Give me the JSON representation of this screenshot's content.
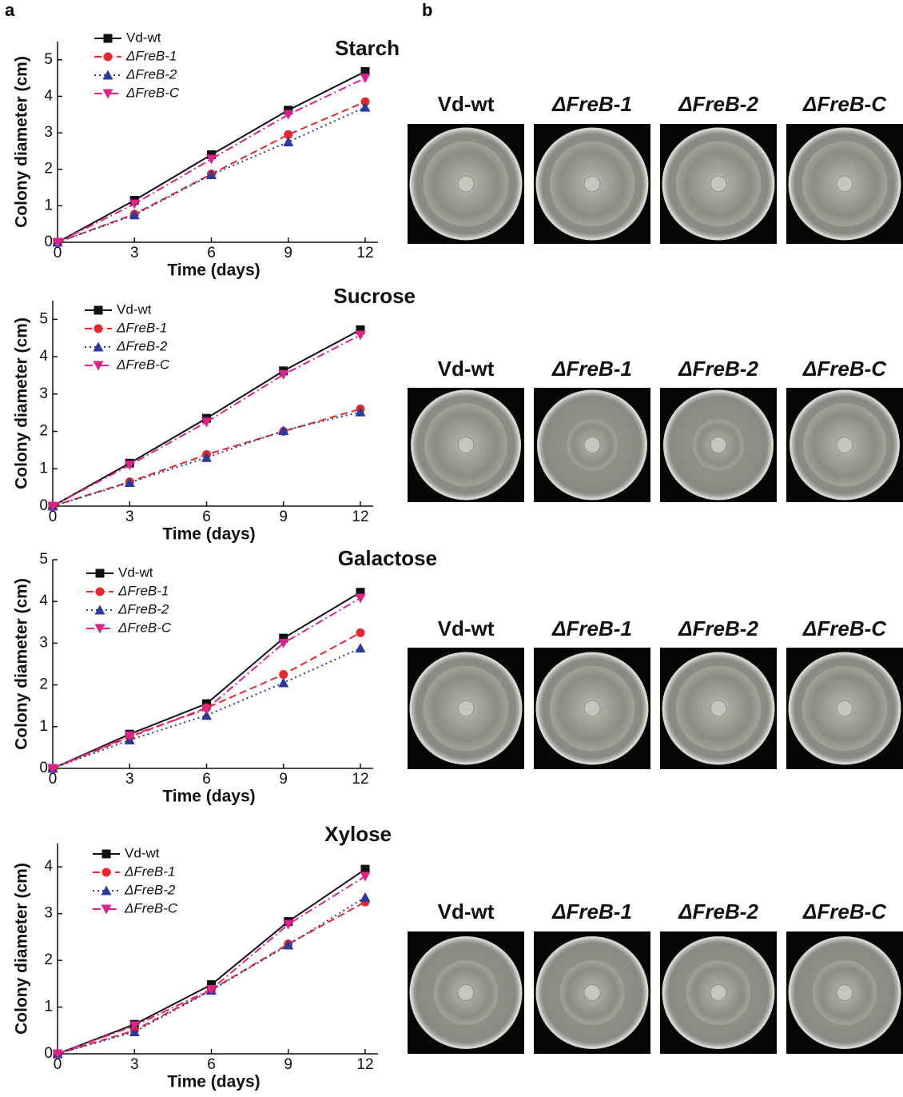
{
  "panel_labels": [
    "a",
    "b"
  ],
  "chart_data": [
    {
      "type": "line",
      "title": "Starch",
      "x_label": "Time (days)",
      "y_label": "Colony diameter (cm)",
      "x": [
        0,
        3,
        6,
        9,
        12
      ],
      "xlim": [
        0,
        12.5
      ],
      "xticks": [
        0,
        3,
        6,
        9,
        12
      ],
      "ylim": [
        0,
        5.5
      ],
      "yticks": [
        0,
        1,
        2,
        3,
        4,
        5
      ],
      "series": [
        {
          "name": "Vd-wt",
          "color": "#111111",
          "marker": "square",
          "linestyle": "solid",
          "values": [
            0,
            1.15,
            2.4,
            3.62,
            4.68
          ]
        },
        {
          "name": "ΔFreB-1",
          "color": "#e8262b",
          "marker": "circle",
          "linestyle": "dashed",
          "values": [
            0,
            0.77,
            1.87,
            2.95,
            3.85
          ]
        },
        {
          "name": "ΔFreB-2",
          "color": "#2b3a9e",
          "marker": "triangle-up",
          "linestyle": "dotted",
          "values": [
            0,
            0.75,
            1.85,
            2.75,
            3.7
          ]
        },
        {
          "name": "ΔFreB-C",
          "color": "#e0218a",
          "marker": "triangle-down",
          "linestyle": "dashdot",
          "values": [
            0,
            1.05,
            2.28,
            3.5,
            4.5
          ]
        }
      ]
    },
    {
      "type": "line",
      "title": "Sucrose",
      "x_label": "Time (days)",
      "y_label": "Colony diameter (cm)",
      "x": [
        0,
        3,
        6,
        9,
        12
      ],
      "xlim": [
        0,
        12.5
      ],
      "xticks": [
        0,
        3,
        6,
        9,
        12
      ],
      "ylim": [
        0,
        5.5
      ],
      "yticks": [
        0,
        1,
        2,
        3,
        4,
        5
      ],
      "series": [
        {
          "name": "Vd-wt",
          "color": "#111111",
          "marker": "square",
          "linestyle": "solid",
          "values": [
            0,
            1.15,
            2.35,
            3.62,
            4.72
          ]
        },
        {
          "name": "ΔFreB-1",
          "color": "#e8262b",
          "marker": "circle",
          "linestyle": "dashed",
          "values": [
            0,
            0.65,
            1.38,
            2.0,
            2.6
          ]
        },
        {
          "name": "ΔFreB-2",
          "color": "#2b3a9e",
          "marker": "triangle-up",
          "linestyle": "dotted",
          "values": [
            0,
            0.63,
            1.3,
            2.02,
            2.52
          ]
        },
        {
          "name": "ΔFreB-C",
          "color": "#e0218a",
          "marker": "triangle-down",
          "linestyle": "dashdot",
          "values": [
            0,
            1.1,
            2.25,
            3.52,
            4.58
          ]
        }
      ]
    },
    {
      "type": "line",
      "title": "Galactose",
      "x_label": "Time (days)",
      "y_label": "Colony diameter (cm)",
      "x": [
        0,
        3,
        6,
        9,
        12
      ],
      "xlim": [
        0,
        12.5
      ],
      "xticks": [
        0,
        3,
        6,
        9,
        12
      ],
      "ylim": [
        0,
        5
      ],
      "yticks": [
        0,
        1,
        2,
        3,
        4,
        5
      ],
      "series": [
        {
          "name": "Vd-wt",
          "color": "#111111",
          "marker": "square",
          "linestyle": "solid",
          "values": [
            0,
            0.82,
            1.55,
            3.12,
            4.22
          ]
        },
        {
          "name": "ΔFreB-1",
          "color": "#e8262b",
          "marker": "circle",
          "linestyle": "dashed",
          "values": [
            0,
            0.75,
            1.45,
            2.25,
            3.25
          ]
        },
        {
          "name": "ΔFreB-2",
          "color": "#2b3a9e",
          "marker": "triangle-up",
          "linestyle": "dotted",
          "values": [
            0,
            0.68,
            1.27,
            2.05,
            2.88
          ]
        },
        {
          "name": "ΔFreB-C",
          "color": "#e0218a",
          "marker": "triangle-down",
          "linestyle": "dashdot",
          "values": [
            0,
            0.78,
            1.42,
            3.0,
            4.08
          ]
        }
      ]
    },
    {
      "type": "line",
      "title": "Xylose",
      "x_label": "Time (days)",
      "y_label": "Colony diameter (cm)",
      "x": [
        0,
        3,
        6,
        9,
        12
      ],
      "xlim": [
        0,
        12.5
      ],
      "xticks": [
        0,
        3,
        6,
        9,
        12
      ],
      "ylim": [
        0,
        4.5
      ],
      "yticks": [
        0,
        1,
        2,
        3,
        4
      ],
      "series": [
        {
          "name": "Vd-wt",
          "color": "#111111",
          "marker": "square",
          "linestyle": "solid",
          "values": [
            0,
            0.63,
            1.48,
            2.83,
            3.95
          ]
        },
        {
          "name": "ΔFreB-1",
          "color": "#e8262b",
          "marker": "circle",
          "linestyle": "dashed",
          "values": [
            0,
            0.5,
            1.37,
            2.35,
            3.25
          ]
        },
        {
          "name": "ΔFreB-2",
          "color": "#2b3a9e",
          "marker": "triangle-up",
          "linestyle": "dotted",
          "values": [
            0,
            0.47,
            1.36,
            2.33,
            3.35
          ]
        },
        {
          "name": "ΔFreB-C",
          "color": "#e0218a",
          "marker": "triangle-down",
          "linestyle": "dashdot",
          "values": [
            0,
            0.6,
            1.38,
            2.77,
            3.8
          ]
        }
      ]
    }
  ],
  "photo_rows": [
    {
      "labels": [
        "Vd-wt",
        "ΔFreB-1",
        "ΔFreB-2",
        "ΔFreB-C"
      ]
    },
    {
      "labels": [
        "Vd-wt",
        "ΔFreB-1",
        "ΔFreB-2",
        "ΔFreB-C"
      ]
    },
    {
      "labels": [
        "Vd-wt",
        "ΔFreB-1",
        "ΔFreB-2",
        "ΔFreB-C"
      ]
    },
    {
      "labels": [
        "Vd-wt",
        "ΔFreB-1",
        "ΔFreB-2",
        "ΔFreB-C"
      ]
    }
  ]
}
